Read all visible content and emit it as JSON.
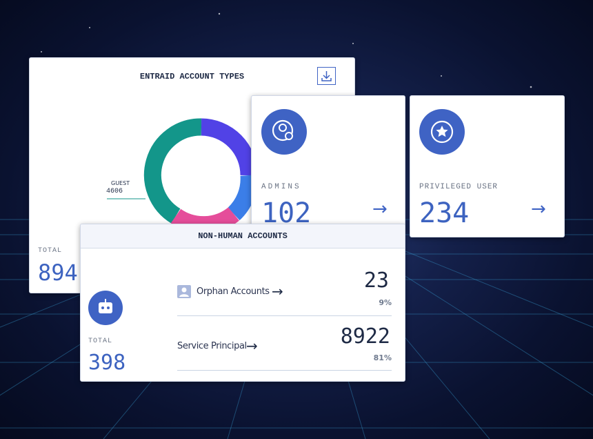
{
  "entraid_card": {
    "title": "ENTRAID ACCOUNT TYPES",
    "guest": {
      "label": "GUEST",
      "value": "4606"
    },
    "total": {
      "label": "TOTAL",
      "value": "894"
    }
  },
  "admins_card": {
    "label": "ADMINS",
    "value": "102"
  },
  "privileged_card": {
    "label": "PRIVILEGED USER",
    "value": "234"
  },
  "non_human_card": {
    "title": "NON-HUMAN ACCOUNTS",
    "total": {
      "label": "TOTAL",
      "value": "398"
    },
    "rows": [
      {
        "label": "Orphan Accounts",
        "count": "23",
        "percent": "9%"
      },
      {
        "label": "Service Principal",
        "count": "8922",
        "percent": "81%"
      }
    ]
  }
}
